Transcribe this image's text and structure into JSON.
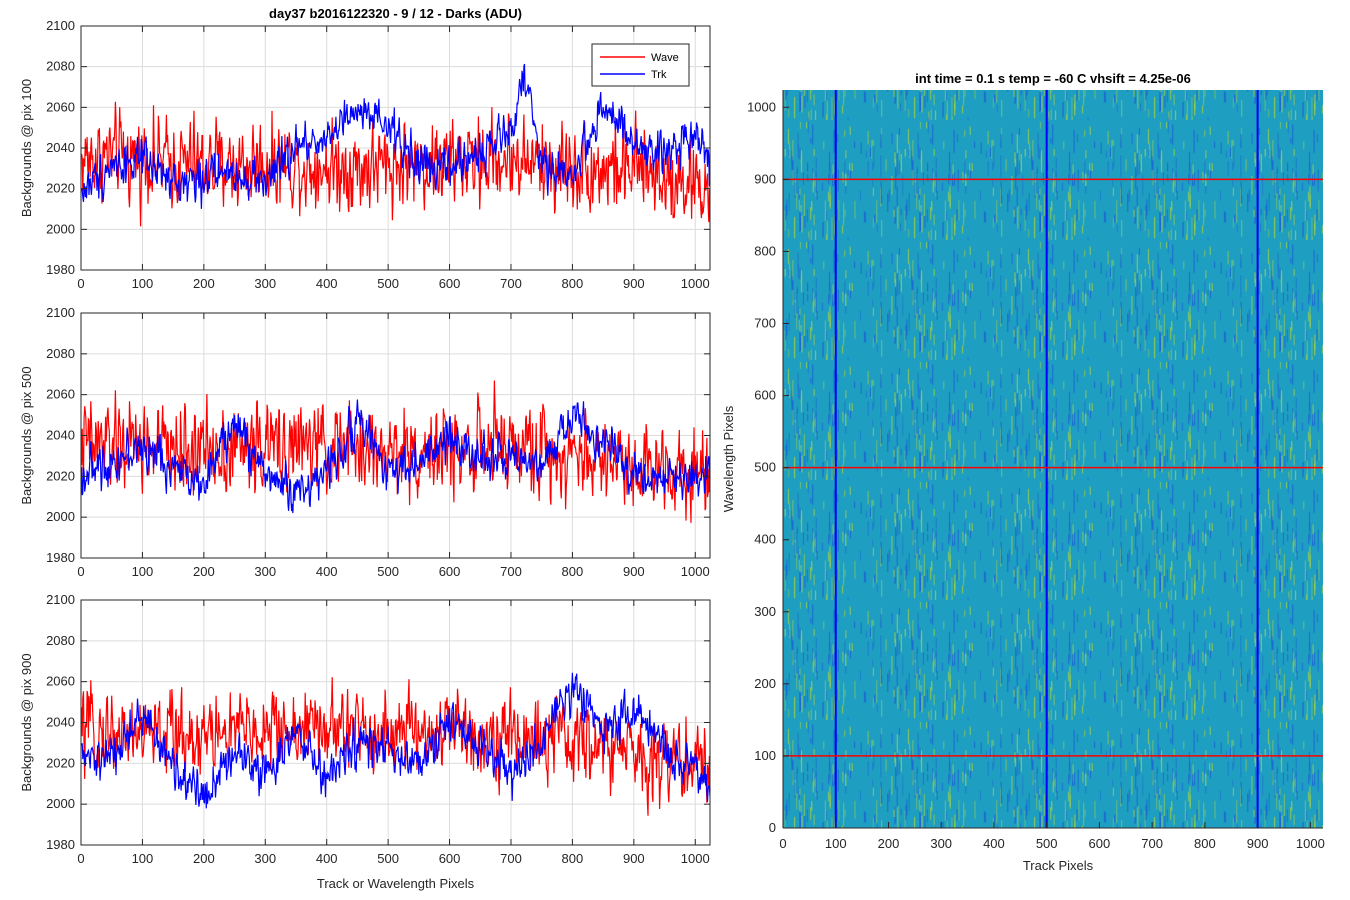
{
  "chart_data": [
    {
      "type": "line",
      "title": "day37 b2016122320 - 9 / 12 - Darks (ADU)",
      "xlabel": "",
      "ylabel": "Backgrounds @ pix 100",
      "xlim": [
        0,
        1024
      ],
      "ylim": [
        1980,
        2100
      ],
      "xticks": [
        "0",
        "100",
        "200",
        "300",
        "400",
        "500",
        "600",
        "700",
        "800",
        "900",
        "1000"
      ],
      "yticks": [
        "1980",
        "2000",
        "2020",
        "2040",
        "2060",
        "2080",
        "2100"
      ],
      "grid": true,
      "legend": "top-right",
      "series": [
        {
          "name": "Wave",
          "color": "#ff0000",
          "noise": 14,
          "x": [
            0,
            50,
            100,
            150,
            200,
            250,
            300,
            350,
            400,
            450,
            500,
            550,
            600,
            650,
            700,
            750,
            800,
            850,
            900,
            950,
            1000,
            1024
          ],
          "y": [
            2034,
            2036,
            2035,
            2033,
            2032,
            2031,
            2033,
            2032,
            2031,
            2030,
            2031,
            2032,
            2033,
            2034,
            2035,
            2032,
            2031,
            2030,
            2029,
            2027,
            2022,
            2018
          ]
        },
        {
          "name": "Trk",
          "color": "#0000ff",
          "noise": 7,
          "x": [
            0,
            50,
            100,
            150,
            200,
            250,
            300,
            350,
            400,
            450,
            500,
            550,
            600,
            650,
            700,
            720,
            750,
            800,
            850,
            900,
            950,
            1000,
            1024
          ],
          "y": [
            2018,
            2032,
            2034,
            2022,
            2026,
            2028,
            2024,
            2040,
            2046,
            2057,
            2050,
            2032,
            2030,
            2038,
            2048,
            2078,
            2032,
            2026,
            2062,
            2040,
            2036,
            2050,
            2032
          ]
        }
      ]
    },
    {
      "type": "line",
      "xlabel": "",
      "ylabel": "Backgrounds @ pix 500",
      "xlim": [
        0,
        1024
      ],
      "ylim": [
        1980,
        2100
      ],
      "xticks": [
        "0",
        "100",
        "200",
        "300",
        "400",
        "500",
        "600",
        "700",
        "800",
        "900",
        "1000"
      ],
      "yticks": [
        "1980",
        "2000",
        "2020",
        "2040",
        "2060",
        "2080",
        "2100"
      ],
      "grid": true,
      "series": [
        {
          "name": "Wave",
          "color": "#ff0000",
          "noise": 14,
          "x": [
            0,
            100,
            200,
            300,
            400,
            500,
            600,
            700,
            800,
            900,
            1000,
            1024
          ],
          "y": [
            2036,
            2034,
            2033,
            2035,
            2034,
            2032,
            2033,
            2034,
            2031,
            2027,
            2024,
            2022
          ]
        },
        {
          "name": "Trk",
          "color": "#0000ff",
          "noise": 7,
          "x": [
            0,
            50,
            100,
            150,
            200,
            250,
            300,
            350,
            400,
            450,
            500,
            550,
            600,
            650,
            700,
            750,
            800,
            850,
            900,
            950,
            1000,
            1024
          ],
          "y": [
            2020,
            2028,
            2034,
            2024,
            2018,
            2046,
            2022,
            2012,
            2022,
            2048,
            2024,
            2026,
            2038,
            2032,
            2026,
            2024,
            2050,
            2036,
            2022,
            2018,
            2020,
            2024
          ]
        }
      ]
    },
    {
      "type": "line",
      "xlabel": "Track or Wavelength Pixels",
      "ylabel": "Backgrounds @ pix 900",
      "xlim": [
        0,
        1024
      ],
      "ylim": [
        1980,
        2100
      ],
      "xticks": [
        "0",
        "100",
        "200",
        "300",
        "400",
        "500",
        "600",
        "700",
        "800",
        "900",
        "1000"
      ],
      "yticks": [
        "1980",
        "2000",
        "2020",
        "2040",
        "2060",
        "2080",
        "2100"
      ],
      "grid": true,
      "series": [
        {
          "name": "Wave",
          "color": "#ff0000",
          "noise": 13,
          "x": [
            0,
            100,
            200,
            300,
            400,
            500,
            600,
            700,
            800,
            900,
            1000,
            1024
          ],
          "y": [
            2036,
            2035,
            2034,
            2036,
            2037,
            2035,
            2036,
            2033,
            2030,
            2025,
            2020,
            2018
          ]
        },
        {
          "name": "Trk",
          "color": "#0000ff",
          "noise": 7,
          "x": [
            0,
            50,
            100,
            150,
            200,
            250,
            300,
            350,
            400,
            450,
            500,
            550,
            600,
            650,
            700,
            750,
            800,
            850,
            900,
            950,
            1000,
            1024
          ],
          "y": [
            2022,
            2022,
            2044,
            2018,
            2004,
            2026,
            2016,
            2034,
            2012,
            2030,
            2026,
            2018,
            2040,
            2030,
            2014,
            2030,
            2058,
            2038,
            2046,
            2026,
            2016,
            2008
          ]
        }
      ]
    },
    {
      "type": "heatmap",
      "title": "int time = 0.1 s   temp = -60 C   vhsift = 4.25e-06",
      "xlabel": "Track Pixels",
      "ylabel": "Wavelength Pixels",
      "xlim": [
        0,
        1024
      ],
      "ylim": [
        0,
        1024
      ],
      "xticks": [
        "0",
        "100",
        "200",
        "300",
        "400",
        "500",
        "600",
        "700",
        "800",
        "900",
        "1000"
      ],
      "yticks": [
        "0",
        "100",
        "200",
        "300",
        "400",
        "500",
        "600",
        "700",
        "800",
        "900",
        "1000"
      ],
      "colormap_low": "#1a5fd6",
      "colormap_mid": "#1e9ec0",
      "colormap_high": "#9fd04a",
      "vertical_markers": {
        "color": "#0000ff",
        "x": [
          100,
          500,
          900
        ]
      },
      "horizontal_markers": {
        "color": "#ff0000",
        "y": [
          100,
          500,
          900
        ]
      }
    }
  ]
}
